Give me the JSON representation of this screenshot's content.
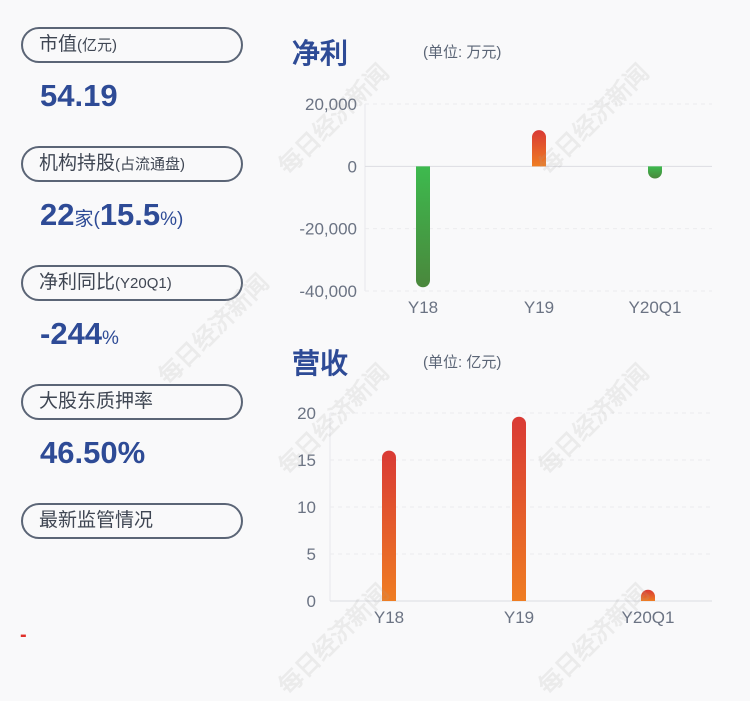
{
  "metrics": [
    {
      "label": "市值",
      "label_small": "(亿元)",
      "value": "54.19",
      "value_unit": ""
    },
    {
      "label": "机构持股",
      "label_small": "(占流通盘)",
      "value": "22",
      "value_unit": "家(",
      "value2": "15.5",
      "value2_unit": "%)"
    },
    {
      "label": "净利同比",
      "label_small": "(Y20Q1)",
      "value": "-244",
      "value_unit": "%"
    },
    {
      "label": "大股东质押率",
      "label_small": "",
      "value": "46.50%",
      "value_unit": ""
    },
    {
      "label": "最新监管情况",
      "label_small": ""
    }
  ],
  "footer_mark": "-",
  "watermark": "每日经济新闻",
  "colors": {
    "accent": "#2e4b96",
    "positive_top": "#d93a35",
    "positive_bottom": "#ef7d22",
    "negative_top": "#3dba4e",
    "negative_bottom": "#4a873c"
  },
  "chart_data": [
    {
      "type": "bar",
      "title": "净利",
      "unit": "(单位: 万元)",
      "categories": [
        "Y18",
        "Y19",
        "Y20Q1"
      ],
      "values": [
        -38800,
        11600,
        -3900
      ],
      "ylim": [
        -40000,
        20000
      ],
      "yticks": [
        20000,
        0,
        -20000,
        -40000
      ],
      "ytick_labels": [
        "20,000",
        "0",
        "-20,000",
        "-40,000"
      ],
      "grid": true
    },
    {
      "type": "bar",
      "title": "营收",
      "unit": "(单位: 亿元)",
      "categories": [
        "Y18",
        "Y19",
        "Y20Q1"
      ],
      "values": [
        16.0,
        19.6,
        1.2
      ],
      "ylim": [
        0,
        20
      ],
      "yticks": [
        20,
        15,
        10,
        5,
        0
      ],
      "ytick_labels": [
        "20",
        "15",
        "10",
        "5",
        "0"
      ],
      "grid": true
    }
  ]
}
